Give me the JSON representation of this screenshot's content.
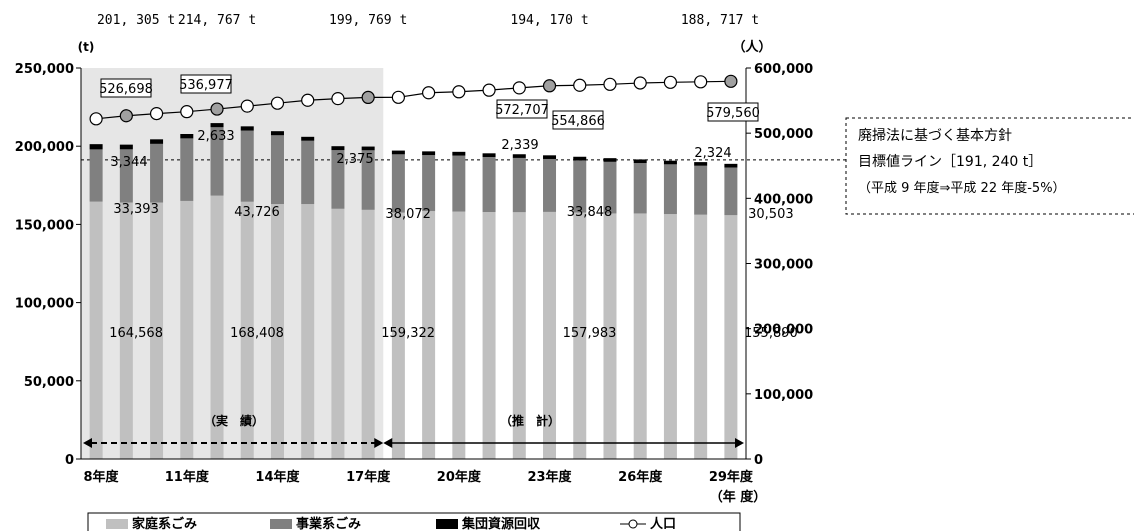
{
  "chart_data": {
    "type": "bar",
    "categories": [
      "8",
      "9",
      "10",
      "11",
      "12",
      "13",
      "14",
      "15",
      "16",
      "17",
      "18",
      "19",
      "20",
      "21",
      "22",
      "23",
      "24",
      "25",
      "26",
      "27",
      "28",
      "29"
    ],
    "x_tick_labels": [
      {
        "index": 0,
        "label": "8年度"
      },
      {
        "index": 3,
        "label": "11年度"
      },
      {
        "index": 6,
        "label": "14年度"
      },
      {
        "index": 9,
        "label": "17年度"
      },
      {
        "index": 12,
        "label": "20年度"
      },
      {
        "index": 15,
        "label": "23年度"
      },
      {
        "index": 18,
        "label": "26年度"
      },
      {
        "index": 21,
        "label": "29年度"
      }
    ],
    "xlabel": "（年 度）",
    "ylabel_left": "(t)",
    "ylabel_right": "（人）",
    "ylim_left": [
      0,
      250000
    ],
    "ylim_right": [
      0,
      600000
    ],
    "yticks_left": [
      "0",
      "50,000",
      "100,000",
      "150,000",
      "200,000",
      "250,000"
    ],
    "yticks_right": [
      "0",
      "100,000",
      "200,000",
      "300,000",
      "400,000",
      "500,000",
      "600,000"
    ],
    "series": [
      {
        "name": "家庭系ごみ",
        "type": "bar",
        "axis": "left",
        "color": "#c0c0c0",
        "values": [
          164568,
          164000,
          164000,
          165000,
          168408,
          164500,
          163000,
          163000,
          160000,
          159322,
          157500,
          158500,
          158200,
          157900,
          157800,
          157983,
          157600,
          157000,
          157000,
          156600,
          156200,
          155890
        ]
      },
      {
        "name": "事業系ごみ",
        "type": "bar",
        "axis": "left",
        "color": "#808080",
        "values": [
          33393,
          34000,
          37500,
          40000,
          43726,
          45500,
          44000,
          40500,
          37500,
          38072,
          37300,
          35800,
          35800,
          35200,
          34700,
          33848,
          33300,
          33000,
          32200,
          31800,
          31300,
          30503
        ]
      },
      {
        "name": "集団資源回収",
        "type": "bar",
        "axis": "left",
        "color": "#000000",
        "values": [
          3344,
          3000,
          2900,
          2800,
          2633,
          2700,
          2600,
          2500,
          2500,
          2375,
          2400,
          2400,
          2400,
          2350,
          2350,
          2339,
          2350,
          2350,
          2330,
          2330,
          2330,
          2324
        ]
      },
      {
        "name": "人口",
        "type": "line",
        "axis": "right",
        "color": "#000000",
        "values": [
          522000,
          526698,
          530000,
          533000,
          536977,
          541500,
          546000,
          550500,
          553000,
          554866,
          555000,
          562000,
          563500,
          566000,
          569500,
          572707,
          573500,
          575000,
          577000,
          578000,
          578800,
          579560
        ]
      }
    ],
    "data_labels": {
      "household": [
        {
          "index": 0,
          "text": "164,568"
        },
        {
          "index": 4,
          "text": "168,408"
        },
        {
          "index": 9,
          "text": "159,322"
        },
        {
          "index": 15,
          "text": "157,983"
        },
        {
          "index": 21,
          "text": "155,890"
        }
      ],
      "business": [
        {
          "index": 0,
          "text": "33,393"
        },
        {
          "index": 4,
          "text": "43,726"
        },
        {
          "index": 9,
          "text": "38,072"
        },
        {
          "index": 15,
          "text": "33,848"
        },
        {
          "index": 21,
          "text": "30,503"
        }
      ],
      "group": [
        {
          "index": 0,
          "text": "3,344"
        },
        {
          "index": 4,
          "text": "2,633"
        },
        {
          "index": 9,
          "text": "2,375"
        },
        {
          "index": 15,
          "text": "2,339"
        },
        {
          "index": 21,
          "text": "2,324"
        }
      ],
      "population": [
        {
          "index": 1,
          "text": "526,698"
        },
        {
          "index": 4,
          "text": "536,977"
        },
        {
          "index": 9,
          "text": "554,866"
        },
        {
          "index": 15,
          "text": "572,707"
        },
        {
          "index": 21,
          "text": "579,560"
        }
      ]
    },
    "top_totals": [
      {
        "index": 0,
        "text": "201, 305 t"
      },
      {
        "index": 4,
        "text": "214, 767 t"
      },
      {
        "index": 9,
        "text": "199, 769 t"
      },
      {
        "index": 15,
        "text": "194, 170 t"
      },
      {
        "index": 21,
        "text": "188, 717 t"
      }
    ],
    "target_line": {
      "value": 191240,
      "axis": "left",
      "style": "dashed"
    },
    "target_annotation": [
      "廃掃法に基づく基本方針",
      "目標値ライン［191, 240 t］",
      "（平成 9 年度⇒平成 22 年度-5%）"
    ],
    "period_labels": [
      {
        "text": "（実　績）",
        "from_index": 0,
        "to_index": 9,
        "style": "dashed"
      },
      {
        "text": "（推　計）",
        "from_index": 9,
        "to_index": 21,
        "style": "solid"
      }
    ],
    "shaded_region": {
      "from_index": 0,
      "to_index": 9,
      "color": "#e6e6e6"
    },
    "legend": {
      "position": "bottom"
    }
  }
}
